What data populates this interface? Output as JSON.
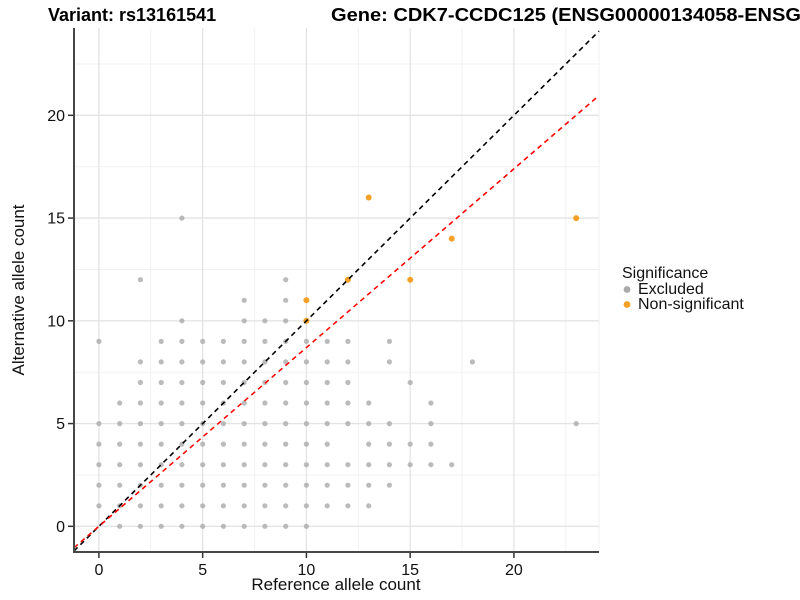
{
  "titles": {
    "variant": "Variant: rs13161541",
    "gene": "Gene: CDK7-CCDC125 (ENSG00000134058-ENSG"
  },
  "axes": {
    "x_label": "Reference allele count",
    "y_label": "Alternative allele count",
    "x_ticks": [
      0,
      5,
      10,
      15,
      20
    ],
    "y_ticks": [
      0,
      5,
      10,
      15,
      20
    ],
    "x_minor": [
      2.5,
      7.5,
      12.5,
      17.5,
      22.5,
      24.1
    ],
    "y_minor": [
      2.5,
      7.5,
      12.5,
      17.5,
      22.5
    ]
  },
  "legend": {
    "title": "Significance",
    "items": [
      {
        "label": "Excluded",
        "color": "#aaaaaa"
      },
      {
        "label": "Non-significant",
        "color": "#f5a127"
      }
    ]
  },
  "chart_data": {
    "type": "scatter",
    "xlabel": "Reference allele count",
    "ylabel": "Alternative allele count",
    "x_domain": [
      -1.2,
      24.1
    ],
    "y_domain": [
      -1.25,
      24.25
    ],
    "grid": "on",
    "legend_position": "right",
    "series": [
      {
        "name": "Excluded",
        "color": "#aaaaaa",
        "points": [
          [
            1,
            0
          ],
          [
            2,
            0
          ],
          [
            3,
            0
          ],
          [
            4,
            0
          ],
          [
            5,
            0
          ],
          [
            6,
            0
          ],
          [
            7,
            0
          ],
          [
            8,
            0
          ],
          [
            9,
            0
          ],
          [
            10,
            0
          ],
          [
            0,
            1
          ],
          [
            1,
            1
          ],
          [
            2,
            1
          ],
          [
            3,
            1
          ],
          [
            4,
            1
          ],
          [
            5,
            1
          ],
          [
            6,
            1
          ],
          [
            7,
            1
          ],
          [
            8,
            1
          ],
          [
            9,
            1
          ],
          [
            10,
            1
          ],
          [
            11,
            1
          ],
          [
            12,
            1
          ],
          [
            13,
            1
          ],
          [
            0,
            2
          ],
          [
            1,
            2
          ],
          [
            2,
            2
          ],
          [
            3,
            2
          ],
          [
            4,
            2
          ],
          [
            5,
            2
          ],
          [
            6,
            2
          ],
          [
            7,
            2
          ],
          [
            8,
            2
          ],
          [
            9,
            2
          ],
          [
            10,
            2
          ],
          [
            11,
            2
          ],
          [
            12,
            2
          ],
          [
            13,
            2
          ],
          [
            14,
            2
          ],
          [
            0,
            3
          ],
          [
            1,
            3
          ],
          [
            2,
            3
          ],
          [
            3,
            3
          ],
          [
            4,
            3
          ],
          [
            5,
            3
          ],
          [
            6,
            3
          ],
          [
            7,
            3
          ],
          [
            8,
            3
          ],
          [
            9,
            3
          ],
          [
            10,
            3
          ],
          [
            11,
            3
          ],
          [
            12,
            3
          ],
          [
            13,
            3
          ],
          [
            14,
            3
          ],
          [
            15,
            3
          ],
          [
            16,
            3
          ],
          [
            17,
            3
          ],
          [
            0,
            4
          ],
          [
            1,
            4
          ],
          [
            2,
            4
          ],
          [
            3,
            4
          ],
          [
            4,
            4
          ],
          [
            5,
            4
          ],
          [
            6,
            4
          ],
          [
            7,
            4
          ],
          [
            8,
            4
          ],
          [
            9,
            4
          ],
          [
            10,
            4
          ],
          [
            11,
            4
          ],
          [
            13,
            4
          ],
          [
            14,
            4
          ],
          [
            15,
            4
          ],
          [
            16,
            4
          ],
          [
            0,
            5
          ],
          [
            1,
            5
          ],
          [
            2,
            5
          ],
          [
            3,
            5
          ],
          [
            4,
            5
          ],
          [
            5,
            5
          ],
          [
            6,
            5
          ],
          [
            7,
            5
          ],
          [
            8,
            5
          ],
          [
            9,
            5
          ],
          [
            10,
            5
          ],
          [
            11,
            5
          ],
          [
            12,
            5
          ],
          [
            13,
            5
          ],
          [
            14,
            5
          ],
          [
            16,
            5
          ],
          [
            23,
            5
          ],
          [
            1,
            6
          ],
          [
            2,
            6
          ],
          [
            3,
            6
          ],
          [
            4,
            6
          ],
          [
            5,
            6
          ],
          [
            6,
            6
          ],
          [
            7,
            6
          ],
          [
            8,
            6
          ],
          [
            9,
            6
          ],
          [
            10,
            6
          ],
          [
            11,
            6
          ],
          [
            12,
            6
          ],
          [
            13,
            6
          ],
          [
            16,
            6
          ],
          [
            2,
            7
          ],
          [
            3,
            7
          ],
          [
            4,
            7
          ],
          [
            5,
            7
          ],
          [
            6,
            7
          ],
          [
            7,
            7
          ],
          [
            8,
            7
          ],
          [
            9,
            7
          ],
          [
            10,
            7
          ],
          [
            11,
            7
          ],
          [
            12,
            7
          ],
          [
            15,
            7
          ],
          [
            2,
            8
          ],
          [
            3,
            8
          ],
          [
            4,
            8
          ],
          [
            5,
            8
          ],
          [
            6,
            8
          ],
          [
            7,
            8
          ],
          [
            8,
            8
          ],
          [
            9,
            8
          ],
          [
            10,
            8
          ],
          [
            11,
            8
          ],
          [
            12,
            8
          ],
          [
            14,
            8
          ],
          [
            18,
            8
          ],
          [
            0,
            9
          ],
          [
            3,
            9
          ],
          [
            4,
            9
          ],
          [
            5,
            9
          ],
          [
            6,
            9
          ],
          [
            7,
            9
          ],
          [
            8,
            9
          ],
          [
            9,
            9
          ],
          [
            10,
            9
          ],
          [
            11,
            9
          ],
          [
            12,
            9
          ],
          [
            14,
            9
          ],
          [
            4,
            10
          ],
          [
            7,
            10
          ],
          [
            8,
            10
          ],
          [
            9,
            10
          ],
          [
            7,
            11
          ],
          [
            9,
            11
          ],
          [
            2,
            12
          ],
          [
            9,
            12
          ],
          [
            4,
            15
          ]
        ]
      },
      {
        "name": "Non-significant",
        "color": "#f5a127",
        "points": [
          [
            10,
            10
          ],
          [
            10,
            11
          ],
          [
            12,
            12
          ],
          [
            15,
            12
          ],
          [
            13,
            16
          ],
          [
            17,
            14
          ],
          [
            23,
            15
          ]
        ]
      }
    ],
    "lines": [
      {
        "name": "identity-line",
        "color": "#000000",
        "slope": 1,
        "intercept": 0,
        "style": "dashed"
      },
      {
        "name": "fit-line",
        "color": "#ff0000",
        "slope": 0.87,
        "intercept": 0,
        "style": "dashed"
      }
    ]
  }
}
